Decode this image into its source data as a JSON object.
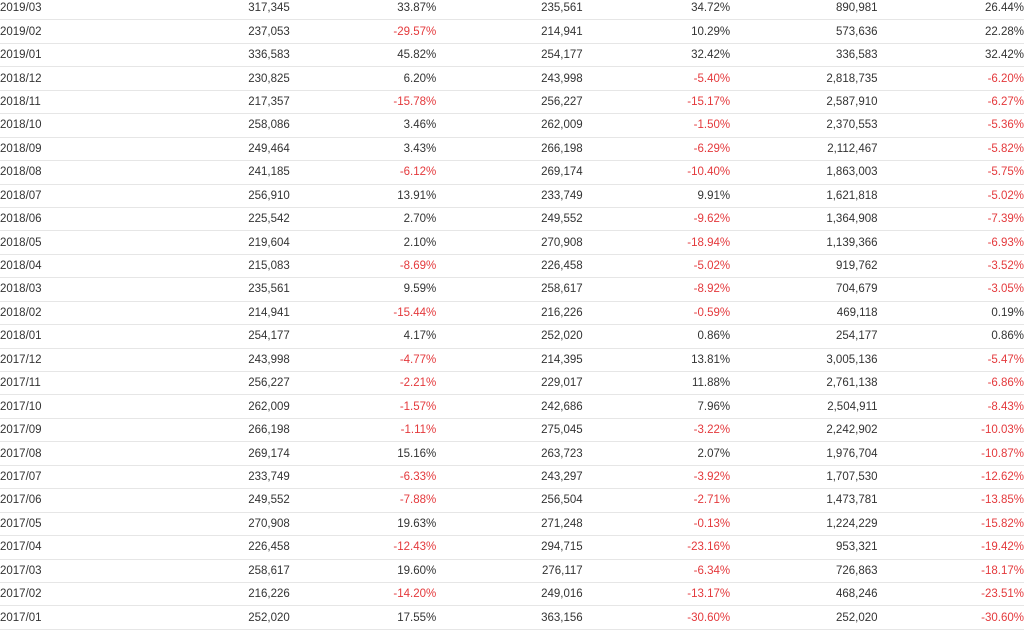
{
  "table": {
    "rows": [
      {
        "date": "2019/03",
        "v1": "317,345",
        "p1": "33.87%",
        "v2": "235,561",
        "p2": "34.72%",
        "v3": "890,981",
        "p3": "26.44%"
      },
      {
        "date": "2019/02",
        "v1": "237,053",
        "p1": "-29.57%",
        "v2": "214,941",
        "p2": "10.29%",
        "v3": "573,636",
        "p3": "22.28%"
      },
      {
        "date": "2019/01",
        "v1": "336,583",
        "p1": "45.82%",
        "v2": "254,177",
        "p2": "32.42%",
        "v3": "336,583",
        "p3": "32.42%"
      },
      {
        "date": "2018/12",
        "v1": "230,825",
        "p1": "6.20%",
        "v2": "243,998",
        "p2": "-5.40%",
        "v3": "2,818,735",
        "p3": "-6.20%"
      },
      {
        "date": "2018/11",
        "v1": "217,357",
        "p1": "-15.78%",
        "v2": "256,227",
        "p2": "-15.17%",
        "v3": "2,587,910",
        "p3": "-6.27%"
      },
      {
        "date": "2018/10",
        "v1": "258,086",
        "p1": "3.46%",
        "v2": "262,009",
        "p2": "-1.50%",
        "v3": "2,370,553",
        "p3": "-5.36%"
      },
      {
        "date": "2018/09",
        "v1": "249,464",
        "p1": "3.43%",
        "v2": "266,198",
        "p2": "-6.29%",
        "v3": "2,112,467",
        "p3": "-5.82%"
      },
      {
        "date": "2018/08",
        "v1": "241,185",
        "p1": "-6.12%",
        "v2": "269,174",
        "p2": "-10.40%",
        "v3": "1,863,003",
        "p3": "-5.75%"
      },
      {
        "date": "2018/07",
        "v1": "256,910",
        "p1": "13.91%",
        "v2": "233,749",
        "p2": "9.91%",
        "v3": "1,621,818",
        "p3": "-5.02%"
      },
      {
        "date": "2018/06",
        "v1": "225,542",
        "p1": "2.70%",
        "v2": "249,552",
        "p2": "-9.62%",
        "v3": "1,364,908",
        "p3": "-7.39%"
      },
      {
        "date": "2018/05",
        "v1": "219,604",
        "p1": "2.10%",
        "v2": "270,908",
        "p2": "-18.94%",
        "v3": "1,139,366",
        "p3": "-6.93%"
      },
      {
        "date": "2018/04",
        "v1": "215,083",
        "p1": "-8.69%",
        "v2": "226,458",
        "p2": "-5.02%",
        "v3": "919,762",
        "p3": "-3.52%"
      },
      {
        "date": "2018/03",
        "v1": "235,561",
        "p1": "9.59%",
        "v2": "258,617",
        "p2": "-8.92%",
        "v3": "704,679",
        "p3": "-3.05%"
      },
      {
        "date": "2018/02",
        "v1": "214,941",
        "p1": "-15.44%",
        "v2": "216,226",
        "p2": "-0.59%",
        "v3": "469,118",
        "p3": "0.19%"
      },
      {
        "date": "2018/01",
        "v1": "254,177",
        "p1": "4.17%",
        "v2": "252,020",
        "p2": "0.86%",
        "v3": "254,177",
        "p3": "0.86%"
      },
      {
        "date": "2017/12",
        "v1": "243,998",
        "p1": "-4.77%",
        "v2": "214,395",
        "p2": "13.81%",
        "v3": "3,005,136",
        "p3": "-5.47%"
      },
      {
        "date": "2017/11",
        "v1": "256,227",
        "p1": "-2.21%",
        "v2": "229,017",
        "p2": "11.88%",
        "v3": "2,761,138",
        "p3": "-6.86%"
      },
      {
        "date": "2017/10",
        "v1": "262,009",
        "p1": "-1.57%",
        "v2": "242,686",
        "p2": "7.96%",
        "v3": "2,504,911",
        "p3": "-8.43%"
      },
      {
        "date": "2017/09",
        "v1": "266,198",
        "p1": "-1.11%",
        "v2": "275,045",
        "p2": "-3.22%",
        "v3": "2,242,902",
        "p3": "-10.03%"
      },
      {
        "date": "2017/08",
        "v1": "269,174",
        "p1": "15.16%",
        "v2": "263,723",
        "p2": "2.07%",
        "v3": "1,976,704",
        "p3": "-10.87%"
      },
      {
        "date": "2017/07",
        "v1": "233,749",
        "p1": "-6.33%",
        "v2": "243,297",
        "p2": "-3.92%",
        "v3": "1,707,530",
        "p3": "-12.62%"
      },
      {
        "date": "2017/06",
        "v1": "249,552",
        "p1": "-7.88%",
        "v2": "256,504",
        "p2": "-2.71%",
        "v3": "1,473,781",
        "p3": "-13.85%"
      },
      {
        "date": "2017/05",
        "v1": "270,908",
        "p1": "19.63%",
        "v2": "271,248",
        "p2": "-0.13%",
        "v3": "1,224,229",
        "p3": "-15.82%"
      },
      {
        "date": "2017/04",
        "v1": "226,458",
        "p1": "-12.43%",
        "v2": "294,715",
        "p2": "-23.16%",
        "v3": "953,321",
        "p3": "-19.42%"
      },
      {
        "date": "2017/03",
        "v1": "258,617",
        "p1": "19.60%",
        "v2": "276,117",
        "p2": "-6.34%",
        "v3": "726,863",
        "p3": "-18.17%"
      },
      {
        "date": "2017/02",
        "v1": "216,226",
        "p1": "-14.20%",
        "v2": "249,016",
        "p2": "-13.17%",
        "v3": "468,246",
        "p3": "-23.51%"
      },
      {
        "date": "2017/01",
        "v1": "252,020",
        "p1": "17.55%",
        "v2": "363,156",
        "p2": "-30.60%",
        "v3": "252,020",
        "p3": "-30.60%"
      }
    ]
  },
  "colors": {
    "negative": "#e4393c",
    "text": "#333333",
    "row_border": "#e6e6e6"
  }
}
